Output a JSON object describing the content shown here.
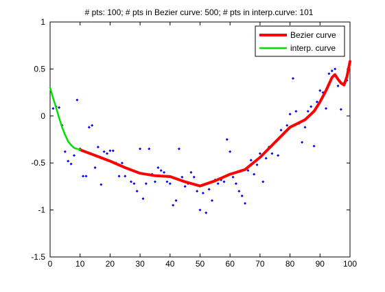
{
  "chart_data": {
    "type": "scatter",
    "title": "# pts: 100; # pts in Bezier curve: 500; # pts in interp.curve: 101",
    "xlabel": "",
    "ylabel": "",
    "xlim": [
      0,
      100
    ],
    "ylim": [
      -1.5,
      1
    ],
    "x_ticks": [
      0,
      10,
      20,
      30,
      40,
      50,
      60,
      70,
      80,
      90,
      100
    ],
    "y_ticks": [
      -1.5,
      -1,
      -0.5,
      0,
      0.5,
      1
    ],
    "grid": false,
    "legend": {
      "position": "top-right"
    },
    "series": [
      {
        "name": "Bezier curve",
        "kind": "line",
        "color": "#ff0000",
        "x": [
          10,
          15,
          20,
          25,
          30,
          35,
          40,
          45,
          50,
          55,
          60,
          65,
          70,
          75,
          80,
          85,
          88,
          90,
          92,
          94,
          95,
          96,
          97,
          98,
          99,
          100
        ],
        "y": [
          -0.36,
          -0.42,
          -0.48,
          -0.55,
          -0.61,
          -0.635,
          -0.645,
          -0.7,
          -0.745,
          -0.69,
          -0.62,
          -0.57,
          -0.44,
          -0.28,
          -0.12,
          -0.04,
          0.05,
          0.15,
          0.27,
          0.41,
          0.44,
          0.39,
          0.35,
          0.33,
          0.42,
          0.58
        ]
      },
      {
        "name": "interp. curve",
        "kind": "line",
        "color": "#00e000",
        "x": [
          0,
          1,
          2,
          3,
          4,
          5,
          6,
          7,
          8,
          9,
          10
        ],
        "y": [
          0.3,
          0.19,
          0.09,
          -0.02,
          -0.12,
          -0.2,
          -0.27,
          -0.31,
          -0.34,
          -0.35,
          -0.36
        ]
      },
      {
        "name": "",
        "kind": "points",
        "color": "#0000ff",
        "x": [
          1,
          2,
          3,
          4,
          5,
          6,
          7,
          8,
          9,
          10,
          11,
          12,
          13,
          14,
          15,
          16,
          17,
          18,
          19,
          20,
          21,
          22,
          23,
          24,
          25,
          26,
          27,
          28,
          29,
          30,
          31,
          32,
          33,
          34,
          35,
          36,
          37,
          38,
          39,
          40,
          41,
          42,
          43,
          44,
          45,
          46,
          47,
          48,
          49,
          50,
          51,
          52,
          53,
          54,
          55,
          56,
          57,
          58,
          59,
          60,
          61,
          62,
          63,
          64,
          65,
          66,
          67,
          68,
          69,
          70,
          71,
          72,
          73,
          74,
          75,
          76,
          77,
          78,
          79,
          80,
          81,
          82,
          83,
          84,
          85,
          86,
          87,
          88,
          89,
          90,
          91,
          92,
          93,
          94,
          95,
          96,
          97,
          98,
          99,
          100
        ],
        "y": [
          0.08,
          0.1,
          0.09,
          -0.1,
          -0.38,
          -0.48,
          -0.51,
          -0.42,
          0.17,
          -0.35,
          -0.64,
          -0.64,
          -0.12,
          -0.1,
          -0.55,
          -0.33,
          -0.73,
          -0.38,
          -0.4,
          -0.37,
          -0.37,
          -0.5,
          -0.64,
          -0.5,
          -0.64,
          -0.56,
          -0.7,
          -0.72,
          -0.8,
          -0.35,
          -0.88,
          -0.72,
          -0.35,
          -0.62,
          -0.7,
          -0.55,
          -0.58,
          -0.6,
          -0.7,
          -0.72,
          -0.95,
          -0.9,
          -0.35,
          -0.65,
          -0.75,
          -0.72,
          -0.6,
          -0.65,
          -0.8,
          -1.0,
          -0.82,
          -1.03,
          -0.78,
          -0.9,
          -0.68,
          -0.72,
          -0.68,
          -0.7,
          -0.25,
          -0.38,
          -0.65,
          -0.72,
          -0.8,
          -0.85,
          -0.93,
          -0.58,
          -0.47,
          -0.62,
          -0.52,
          -0.4,
          -0.7,
          -0.45,
          -0.33,
          -0.4,
          -0.28,
          -0.42,
          -0.15,
          -0.18,
          -0.1,
          0.02,
          0.4,
          0.05,
          -0.08,
          -0.28,
          -0.12,
          0.05,
          0.1,
          -0.32,
          0.15,
          0.27,
          0.25,
          0.08,
          0.45,
          0.48,
          0.5,
          0.32,
          0.07,
          0.35,
          0.38,
          0.58
        ]
      }
    ]
  }
}
